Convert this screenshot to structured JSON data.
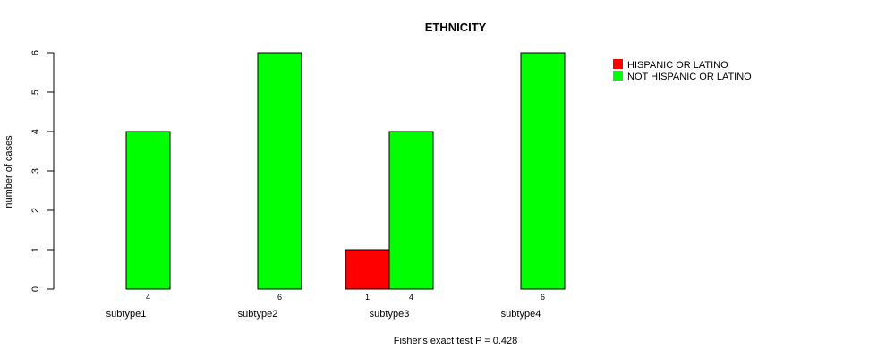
{
  "chart_data": {
    "type": "bar",
    "title": "ETHNICITY",
    "xlabel": "",
    "ylabel": "number of cases",
    "ylim": [
      0,
      6
    ],
    "yticks": [
      0,
      1,
      2,
      3,
      4,
      5,
      6
    ],
    "categories": [
      "subtype1",
      "subtype2",
      "subtype3",
      "subtype4"
    ],
    "series": [
      {
        "name": "HISPANIC OR LATINO",
        "color": "#ff0000",
        "values": [
          0,
          0,
          1,
          0
        ],
        "labels": [
          "",
          "",
          "1",
          ""
        ]
      },
      {
        "name": "NOT HISPANIC OR LATINO",
        "color": "#00ff00",
        "values": [
          4,
          6,
          4,
          6
        ],
        "labels": [
          "4",
          "6",
          "4",
          "6"
        ]
      }
    ],
    "legend_position": "top-right",
    "footnote": "Fisher's exact test P = 0.428"
  }
}
